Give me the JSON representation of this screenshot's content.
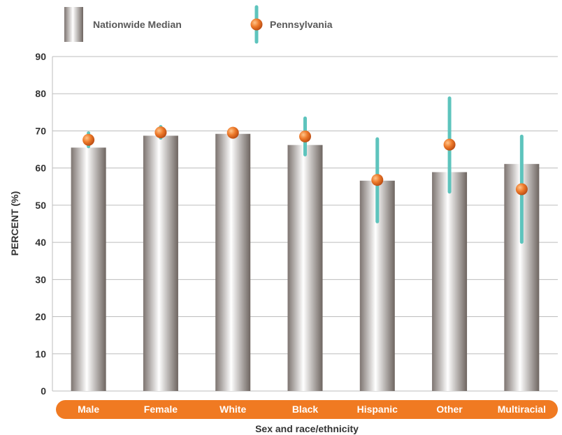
{
  "legend": {
    "bar_label": "Nationwide Median",
    "point_label": "Pennsylvania"
  },
  "chart_data": {
    "type": "bar",
    "title": "",
    "xlabel": "Sex and race/ethnicity",
    "ylabel": "PERCENT (%)",
    "ylim": [
      0,
      90
    ],
    "yticks": [
      0,
      10,
      20,
      30,
      40,
      50,
      60,
      70,
      80,
      90
    ],
    "grid": true,
    "legend_position": "top-left",
    "categories": [
      "Male",
      "Female",
      "White",
      "Black",
      "Hispanic",
      "Other",
      "Multiracial"
    ],
    "series": [
      {
        "name": "Nationwide Median",
        "type": "bar",
        "values": [
          65.5,
          68.7,
          69.2,
          66.2,
          56.6,
          58.9,
          61.1
        ]
      },
      {
        "name": "Pennsylvania",
        "type": "point",
        "values": [
          67.6,
          69.6,
          69.5,
          68.5,
          56.8,
          66.3,
          54.3
        ],
        "ci_low": [
          65.8,
          68.1,
          68.4,
          63.6,
          45.6,
          53.6,
          40.1
        ],
        "ci_high": [
          69.4,
          71.1,
          70.6,
          73.4,
          67.8,
          78.8,
          68.5
        ]
      }
    ],
    "colors": {
      "bar_dark": "#7d7470",
      "bar_light": "#ffffff",
      "point": "#e8772e",
      "ci": "#5ec4bd",
      "category_band": "#f07a22",
      "grid": "#bdbdbd"
    }
  }
}
